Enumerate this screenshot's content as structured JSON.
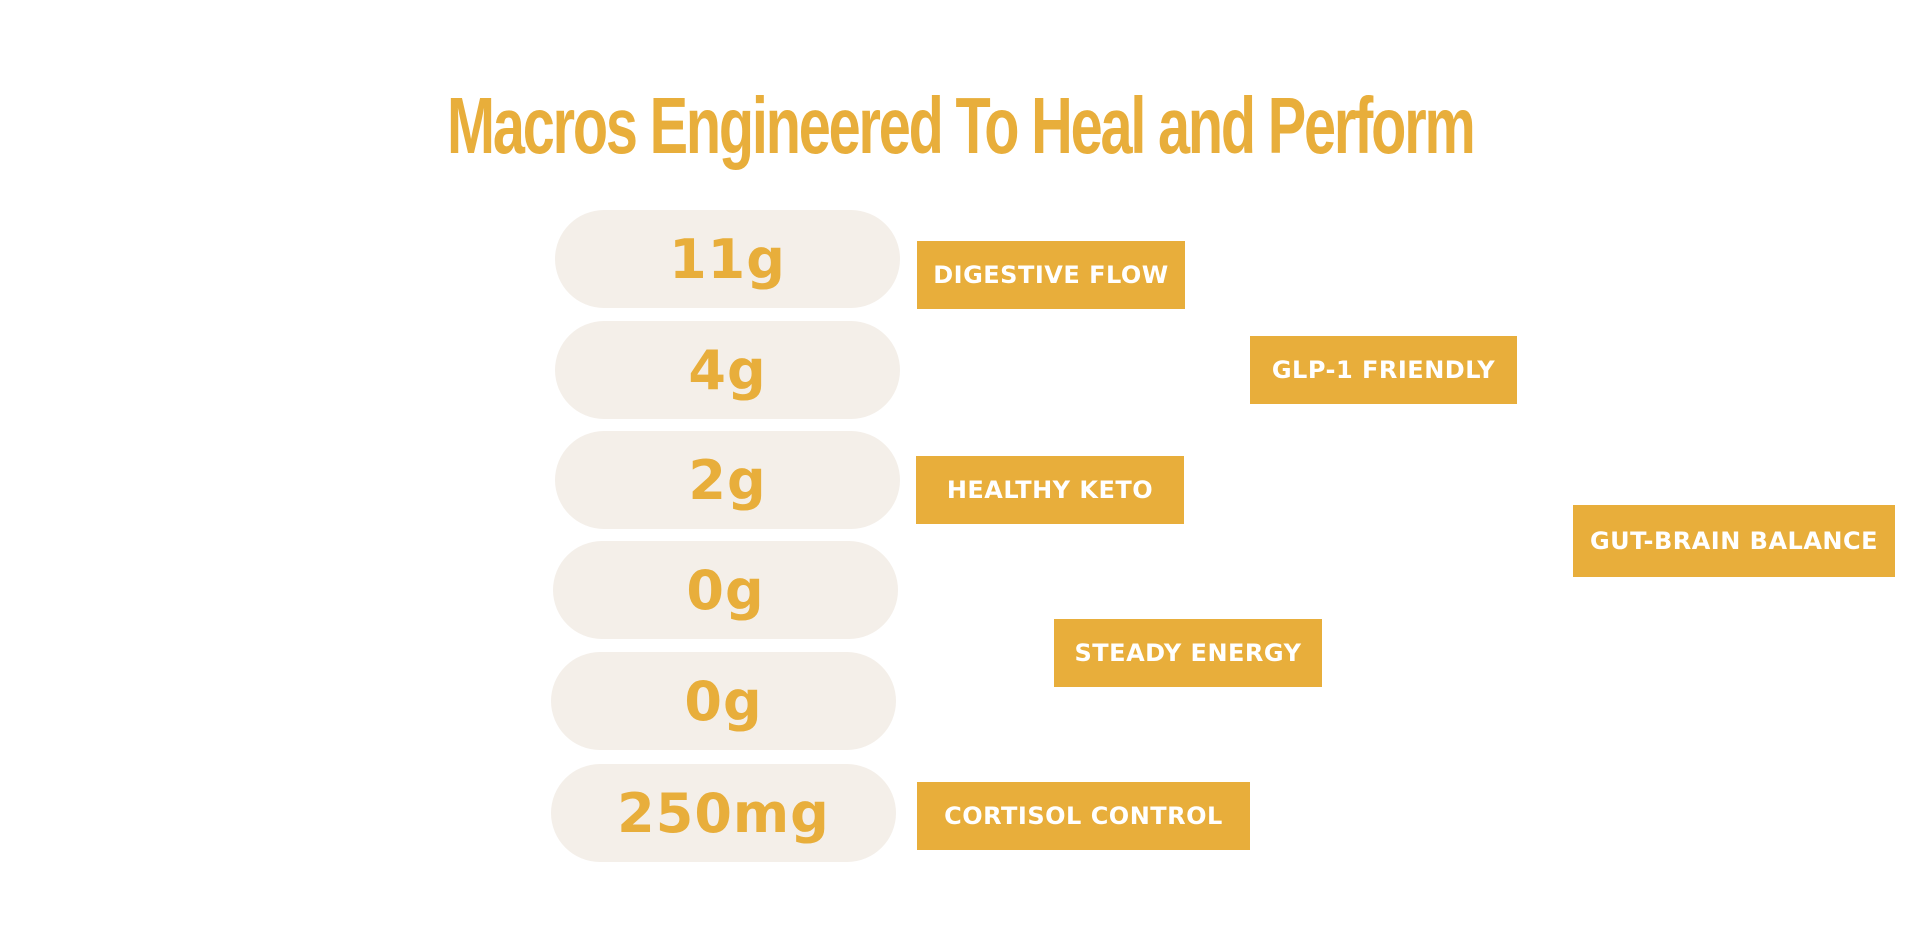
{
  "colors": {
    "accent": "#e8ae3b",
    "pill_background": "#f4efe9",
    "tag_text": "#ffffff",
    "background": "#ffffff"
  },
  "title": "Macros Engineered To Heal and Perform",
  "macros": [
    {
      "value": "11g"
    },
    {
      "value": "4g"
    },
    {
      "value": "2g"
    },
    {
      "value": "0g"
    },
    {
      "value": "0g"
    },
    {
      "value": "250mg"
    }
  ],
  "tags": [
    {
      "label": "DIGESTIVE FLOW"
    },
    {
      "label": "GLP-1 FRIENDLY"
    },
    {
      "label": "HEALTHY KETO"
    },
    {
      "label": "GUT-BRAIN BALANCE"
    },
    {
      "label": "STEADY ENERGY"
    },
    {
      "label": "CORTISOL CONTROL"
    }
  ]
}
